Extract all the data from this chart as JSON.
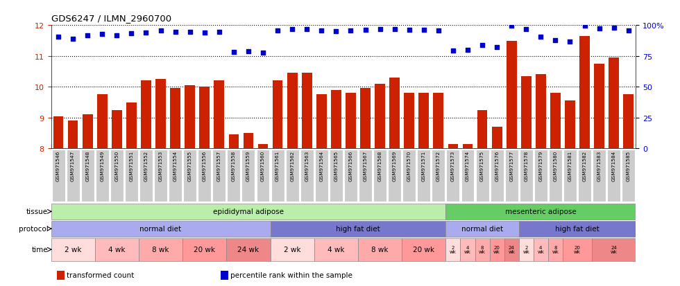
{
  "title": "GDS6247 / ILMN_2960700",
  "samples": [
    "GSM971546",
    "GSM971547",
    "GSM971548",
    "GSM971549",
    "GSM971550",
    "GSM971551",
    "GSM971552",
    "GSM971553",
    "GSM971554",
    "GSM971555",
    "GSM971556",
    "GSM971557",
    "GSM971558",
    "GSM971559",
    "GSM971560",
    "GSM971561",
    "GSM971562",
    "GSM971563",
    "GSM971564",
    "GSM971565",
    "GSM971566",
    "GSM971567",
    "GSM971568",
    "GSM971569",
    "GSM971570",
    "GSM971571",
    "GSM971572",
    "GSM971573",
    "GSM971574",
    "GSM971575",
    "GSM971576",
    "GSM971577",
    "GSM971578",
    "GSM971579",
    "GSM971580",
    "GSM971581",
    "GSM971582",
    "GSM971583",
    "GSM971584",
    "GSM971585"
  ],
  "bar_values": [
    9.05,
    8.9,
    9.1,
    9.75,
    9.25,
    9.5,
    10.2,
    10.25,
    9.95,
    10.05,
    10.0,
    10.2,
    8.45,
    8.5,
    8.15,
    10.2,
    10.45,
    10.45,
    9.75,
    9.9,
    9.8,
    9.95,
    10.1,
    10.3,
    9.8,
    9.8,
    9.8,
    8.15,
    8.15,
    9.25,
    8.7,
    11.5,
    10.35,
    10.4,
    9.8,
    9.55,
    11.65,
    10.75,
    10.95,
    9.75
  ],
  "percentile_values": [
    90.5,
    89.0,
    91.5,
    93.0,
    91.5,
    93.5,
    94.0,
    95.5,
    94.5,
    94.5,
    94.0,
    94.5,
    78.0,
    79.0,
    77.5,
    95.5,
    97.0,
    97.0,
    95.5,
    95.0,
    95.5,
    96.0,
    96.5,
    96.5,
    96.0,
    96.0,
    95.5,
    79.5,
    80.0,
    84.0,
    82.0,
    99.5,
    97.0,
    90.5,
    88.0,
    86.5,
    99.5,
    97.5,
    98.0,
    95.5
  ],
  "ylim_left": [
    8,
    12
  ],
  "ylim_right": [
    0,
    100
  ],
  "yticks_left": [
    8,
    9,
    10,
    11,
    12
  ],
  "yticks_right": [
    0,
    25,
    50,
    75,
    100
  ],
  "bar_color": "#cc2200",
  "dot_color": "#0000cc",
  "tissue_groups": [
    {
      "label": "epididymal adipose",
      "start": 0,
      "end": 27,
      "color": "#bbeeaa"
    },
    {
      "label": "mesenteric adipose",
      "start": 27,
      "end": 40,
      "color": "#66cc66"
    }
  ],
  "protocol_groups": [
    {
      "label": "normal diet",
      "start": 0,
      "end": 15,
      "color": "#aaaaee"
    },
    {
      "label": "high fat diet",
      "start": 15,
      "end": 27,
      "color": "#7777cc"
    },
    {
      "label": "normal diet",
      "start": 27,
      "end": 32,
      "color": "#aaaaee"
    },
    {
      "label": "high fat diet",
      "start": 32,
      "end": 40,
      "color": "#7777cc"
    }
  ],
  "time_wide_groups": [
    {
      "label": "2 wk",
      "start": 0,
      "end": 3,
      "color": "#ffdddd"
    },
    {
      "label": "4 wk",
      "start": 3,
      "end": 6,
      "color": "#ffbbbb"
    },
    {
      "label": "8 wk",
      "start": 6,
      "end": 9,
      "color": "#ffaaaa"
    },
    {
      "label": "20 wk",
      "start": 9,
      "end": 12,
      "color": "#ff9999"
    },
    {
      "label": "24 wk",
      "start": 12,
      "end": 15,
      "color": "#ee8888"
    },
    {
      "label": "2 wk",
      "start": 15,
      "end": 18,
      "color": "#ffdddd"
    },
    {
      "label": "4 wk",
      "start": 18,
      "end": 21,
      "color": "#ffbbbb"
    },
    {
      "label": "8 wk",
      "start": 21,
      "end": 24,
      "color": "#ffaaaa"
    },
    {
      "label": "20 wk",
      "start": 24,
      "end": 27,
      "color": "#ff9999"
    }
  ],
  "time_narrow_groups": [
    {
      "label": "2\nwk",
      "start": 27,
      "end": 28,
      "color": "#ffdddd"
    },
    {
      "label": "4\nwk",
      "start": 28,
      "end": 29,
      "color": "#ffbbbb"
    },
    {
      "label": "8\nwk",
      "start": 29,
      "end": 30,
      "color": "#ffaaaa"
    },
    {
      "label": "20\nwk",
      "start": 30,
      "end": 31,
      "color": "#ff9999"
    },
    {
      "label": "24\nwk",
      "start": 31,
      "end": 32,
      "color": "#ee8888"
    },
    {
      "label": "2\nwk",
      "start": 32,
      "end": 33,
      "color": "#ffdddd"
    },
    {
      "label": "4\nwk",
      "start": 33,
      "end": 34,
      "color": "#ffbbbb"
    },
    {
      "label": "8\nwk",
      "start": 34,
      "end": 35,
      "color": "#ffaaaa"
    },
    {
      "label": "20\nwk",
      "start": 35,
      "end": 37,
      "color": "#ff9999"
    },
    {
      "label": "24\nwk",
      "start": 37,
      "end": 40,
      "color": "#ee8888"
    }
  ],
  "background_color": "#ffffff",
  "tick_label_bg": "#cccccc",
  "legend_items": [
    {
      "label": "transformed count",
      "color": "#cc2200"
    },
    {
      "label": "percentile rank within the sample",
      "color": "#0000cc"
    }
  ]
}
